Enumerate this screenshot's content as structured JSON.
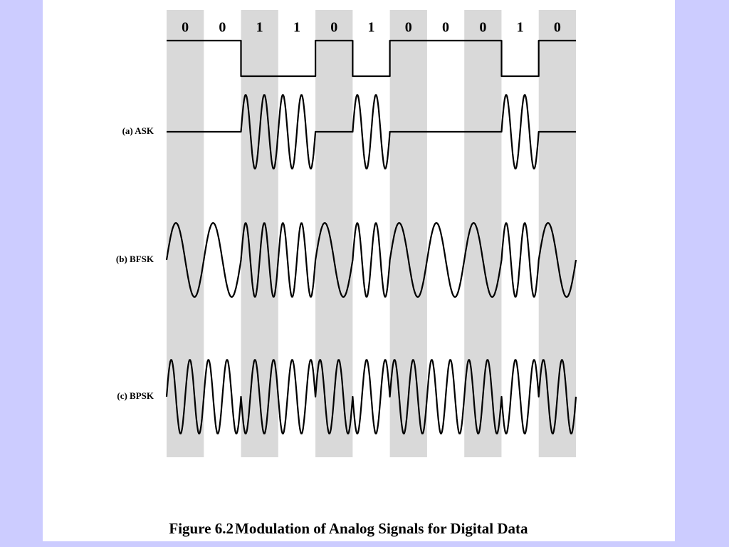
{
  "figure": {
    "bits": [
      "0",
      "0",
      "1",
      "1",
      "0",
      "1",
      "0",
      "0",
      "0",
      "1",
      "0"
    ],
    "signals": [
      {
        "label": "(a) ASK"
      },
      {
        "label": "(b) BFSK"
      },
      {
        "label": "(c) BPSK"
      }
    ],
    "caption": {
      "number": "Figure 6.2",
      "title": "Modulation of Analog Signals for Digital Data"
    }
  }
}
